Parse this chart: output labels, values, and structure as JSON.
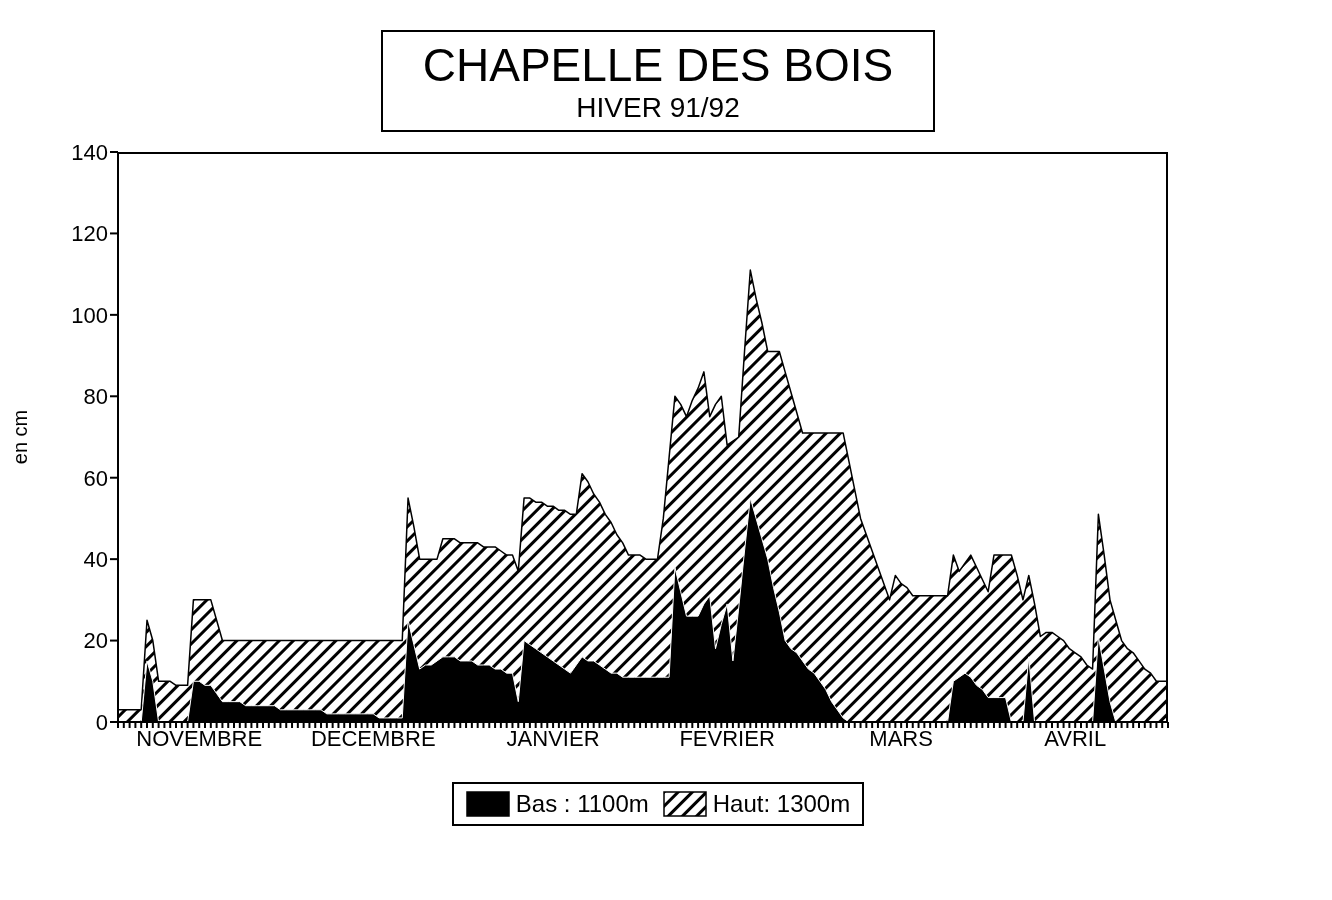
{
  "chart_data": {
    "type": "area",
    "title": "CHAPELLE DES BOIS",
    "subtitle": "HIVER 91/92",
    "ylabel": "en cm",
    "categories": [
      null,
      null,
      null,
      null,
      null,
      null,
      null,
      null,
      null,
      null,
      null,
      null,
      null,
      null,
      "NOVEMBRE",
      null,
      null,
      null,
      null,
      null,
      null,
      null,
      null,
      null,
      null,
      null,
      null,
      null,
      null,
      null,
      null,
      null,
      null,
      null,
      null,
      null,
      null,
      null,
      null,
      null,
      null,
      null,
      null,
      null,
      "DECEMBRE",
      null,
      null,
      null,
      null,
      null,
      null,
      null,
      null,
      null,
      null,
      null,
      null,
      null,
      null,
      null,
      null,
      null,
      null,
      null,
      null,
      null,
      null,
      null,
      null,
      null,
      null,
      null,
      null,
      null,
      null,
      "JANVIER",
      null,
      null,
      null,
      null,
      null,
      null,
      null,
      null,
      null,
      null,
      null,
      null,
      null,
      null,
      null,
      null,
      null,
      null,
      null,
      null,
      null,
      null,
      null,
      null,
      null,
      null,
      null,
      null,
      null,
      "FEVRIER",
      null,
      null,
      null,
      null,
      null,
      null,
      null,
      null,
      null,
      null,
      null,
      null,
      null,
      null,
      null,
      null,
      null,
      null,
      null,
      null,
      null,
      null,
      null,
      null,
      null,
      null,
      null,
      null,
      null,
      "MARS",
      null,
      null,
      null,
      null,
      null,
      null,
      null,
      null,
      null,
      null,
      null,
      null,
      null,
      null,
      null,
      null,
      null,
      null,
      null,
      null,
      null,
      null,
      null,
      null,
      null,
      null,
      null,
      null,
      null,
      "AVRIL",
      null,
      null,
      null,
      null,
      null,
      null,
      null,
      null,
      null,
      null,
      null,
      null,
      null,
      null,
      null,
      null
    ],
    "ylim": [
      0,
      140
    ],
    "yticks": [
      0,
      20,
      40,
      60,
      80,
      100,
      120,
      140
    ],
    "grid": false,
    "legend": "bottom",
    "series": [
      {
        "name": "Bas : 1100m",
        "color": "#000000",
        "values": [
          0,
          0,
          0,
          0,
          0,
          15,
          10,
          0,
          0,
          0,
          0,
          0,
          0,
          10,
          10,
          9,
          9,
          7,
          5,
          5,
          5,
          5,
          4,
          4,
          4,
          4,
          4,
          4,
          3,
          3,
          3,
          3,
          3,
          3,
          3,
          3,
          2,
          2,
          2,
          2,
          2,
          2,
          2,
          2,
          2,
          1,
          1,
          1,
          1,
          1,
          25,
          19,
          13,
          14,
          14,
          15,
          16,
          16,
          16,
          15,
          15,
          15,
          14,
          14,
          14,
          13,
          13,
          12,
          12,
          5,
          20,
          19,
          18,
          17,
          16,
          15,
          14,
          13,
          12,
          14,
          16,
          15,
          15,
          14,
          13,
          12,
          12,
          11,
          11,
          11,
          11,
          11,
          11,
          11,
          11,
          11,
          38,
          32,
          26,
          26,
          26,
          29,
          31,
          18,
          24,
          29,
          15,
          28,
          42,
          55,
          50,
          45,
          40,
          33,
          27,
          20,
          18,
          17,
          15,
          13,
          12,
          10,
          8,
          5,
          3,
          1,
          0,
          0,
          0,
          0,
          0,
          0,
          0,
          0,
          0,
          0,
          0,
          0,
          0,
          0,
          0,
          0,
          0,
          0,
          10,
          11,
          12,
          11,
          9,
          8,
          6,
          6,
          6,
          6,
          0,
          0,
          0,
          16,
          0,
          0,
          0,
          0,
          0,
          0,
          0,
          0,
          0,
          0,
          0,
          21,
          13,
          5,
          0,
          0,
          0,
          0,
          0,
          0,
          0,
          0,
          0,
          0
        ]
      },
      {
        "name": "Haut: 1300m",
        "color": "#000000",
        "values": [
          3,
          3,
          3,
          3,
          3,
          25,
          20,
          10,
          10,
          10,
          9,
          9,
          9,
          30,
          30,
          30,
          30,
          25,
          20,
          20,
          20,
          20,
          20,
          20,
          20,
          20,
          20,
          20,
          20,
          20,
          20,
          20,
          20,
          20,
          20,
          20,
          20,
          20,
          20,
          20,
          20,
          20,
          20,
          20,
          20,
          20,
          20,
          20,
          20,
          20,
          55,
          48,
          40,
          40,
          40,
          40,
          45,
          45,
          45,
          44,
          44,
          44,
          44,
          43,
          43,
          43,
          42,
          41,
          41,
          37,
          55,
          55,
          54,
          54,
          53,
          53,
          52,
          52,
          51,
          51,
          61,
          59,
          56,
          54,
          51,
          49,
          46,
          44,
          41,
          41,
          41,
          40,
          40,
          40,
          50,
          65,
          80,
          78,
          75,
          79,
          82,
          86,
          75,
          78,
          80,
          68,
          69,
          70,
          91,
          111,
          104,
          98,
          91,
          91,
          91,
          86,
          81,
          76,
          71,
          71,
          71,
          71,
          71,
          71,
          71,
          71,
          64,
          57,
          50,
          46,
          42,
          38,
          34,
          30,
          36,
          34,
          33,
          31,
          31,
          31,
          31,
          31,
          31,
          31,
          41,
          37,
          39,
          41,
          38,
          35,
          32,
          41,
          41,
          41,
          41,
          36,
          30,
          36,
          29,
          21,
          22,
          22,
          21,
          20,
          18,
          17,
          16,
          14,
          13,
          51,
          41,
          30,
          25,
          20,
          18,
          17,
          15,
          13,
          12,
          10,
          10,
          10
        ]
      }
    ]
  }
}
